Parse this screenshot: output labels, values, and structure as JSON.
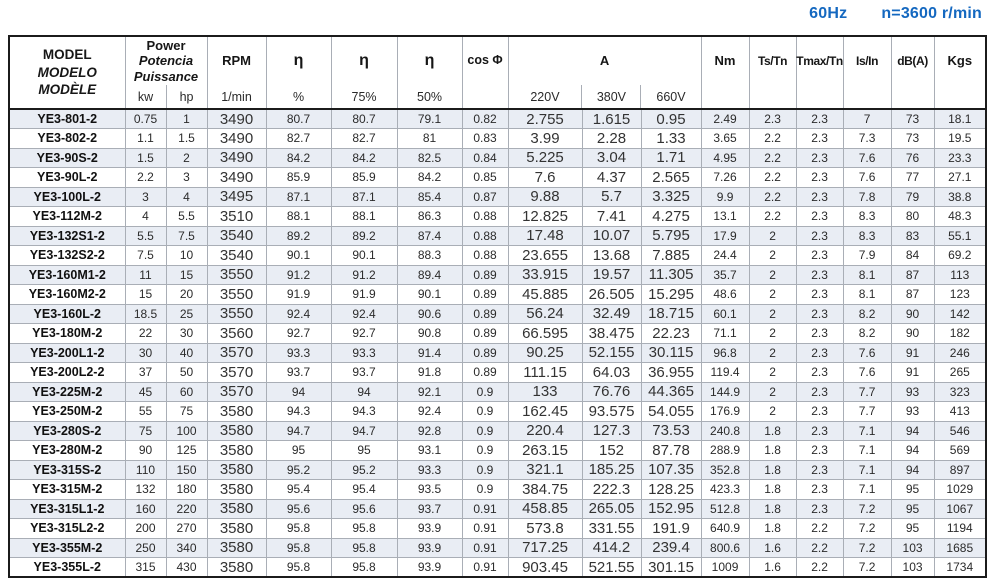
{
  "note": {
    "frequency": "60Hz",
    "speed": "n=3600 r/min"
  },
  "colors": {
    "accent_blue": "#1468c0",
    "row_stripe": "#e9edf4",
    "grid_line": "#a9aeb6",
    "frame": "#1b1b1b"
  },
  "table": {
    "columns": {
      "model": {
        "line1": "MODEL",
        "line2": "MODELO",
        "line3": "MODÈLE"
      },
      "power": {
        "line1": "Power",
        "line2": "Potencia",
        "line3": "Puissance",
        "sub_kw": "kw",
        "sub_hp": "hp"
      },
      "rpm": {
        "label": "RPM",
        "sub": "1/min"
      },
      "eta_full": {
        "label": "η",
        "sub": "%"
      },
      "eta_75": {
        "label": "η",
        "sub": "75%"
      },
      "eta_50": {
        "label": "η",
        "sub": "50%"
      },
      "cos_phi": {
        "label": "cos Φ"
      },
      "current": {
        "label": "A",
        "sub_220": "220V",
        "sub_380": "380V",
        "sub_660": "660V"
      },
      "nm": {
        "label": "Nm"
      },
      "ts_tn": {
        "label": "Ts/Tn"
      },
      "tmax_tn": {
        "label": "Tmax/Tn"
      },
      "is_in": {
        "label": "Is/In"
      },
      "dba": {
        "label": "dB(A)"
      },
      "kgs": {
        "label": "Kgs"
      }
    },
    "rows": [
      [
        "YE3-801-2",
        "0.75",
        "1",
        "3490",
        "80.7",
        "80.7",
        "79.1",
        "0.82",
        "2.755",
        "1.615",
        "0.95",
        "2.49",
        "2.3",
        "2.3",
        "7",
        "73",
        "18.1"
      ],
      [
        "YE3-802-2",
        "1.1",
        "1.5",
        "3490",
        "82.7",
        "82.7",
        "81",
        "0.83",
        "3.99",
        "2.28",
        "1.33",
        "3.65",
        "2.2",
        "2.3",
        "7.3",
        "73",
        "19.5"
      ],
      [
        "YE3-90S-2",
        "1.5",
        "2",
        "3490",
        "84.2",
        "84.2",
        "82.5",
        "0.84",
        "5.225",
        "3.04",
        "1.71",
        "4.95",
        "2.2",
        "2.3",
        "7.6",
        "76",
        "23.3"
      ],
      [
        "YE3-90L-2",
        "2.2",
        "3",
        "3490",
        "85.9",
        "85.9",
        "84.2",
        "0.85",
        "7.6",
        "4.37",
        "2.565",
        "7.26",
        "2.2",
        "2.3",
        "7.6",
        "77",
        "27.1"
      ],
      [
        "YE3-100L-2",
        "3",
        "4",
        "3495",
        "87.1",
        "87.1",
        "85.4",
        "0.87",
        "9.88",
        "5.7",
        "3.325",
        "9.9",
        "2.2",
        "2.3",
        "7.8",
        "79",
        "38.8"
      ],
      [
        "YE3-112M-2",
        "4",
        "5.5",
        "3510",
        "88.1",
        "88.1",
        "86.3",
        "0.88",
        "12.825",
        "7.41",
        "4.275",
        "13.1",
        "2.2",
        "2.3",
        "8.3",
        "80",
        "48.3"
      ],
      [
        "YE3-132S1-2",
        "5.5",
        "7.5",
        "3540",
        "89.2",
        "89.2",
        "87.4",
        "0.88",
        "17.48",
        "10.07",
        "5.795",
        "17.9",
        "2",
        "2.3",
        "8.3",
        "83",
        "55.1"
      ],
      [
        "YE3-132S2-2",
        "7.5",
        "10",
        "3540",
        "90.1",
        "90.1",
        "88.3",
        "0.88",
        "23.655",
        "13.68",
        "7.885",
        "24.4",
        "2",
        "2.3",
        "7.9",
        "84",
        "69.2"
      ],
      [
        "YE3-160M1-2",
        "11",
        "15",
        "3550",
        "91.2",
        "91.2",
        "89.4",
        "0.89",
        "33.915",
        "19.57",
        "11.305",
        "35.7",
        "2",
        "2.3",
        "8.1",
        "87",
        "113"
      ],
      [
        "YE3-160M2-2",
        "15",
        "20",
        "3550",
        "91.9",
        "91.9",
        "90.1",
        "0.89",
        "45.885",
        "26.505",
        "15.295",
        "48.6",
        "2",
        "2.3",
        "8.1",
        "87",
        "123"
      ],
      [
        "YE3-160L-2",
        "18.5",
        "25",
        "3550",
        "92.4",
        "92.4",
        "90.6",
        "0.89",
        "56.24",
        "32.49",
        "18.715",
        "60.1",
        "2",
        "2.3",
        "8.2",
        "90",
        "142"
      ],
      [
        "YE3-180M-2",
        "22",
        "30",
        "3560",
        "92.7",
        "92.7",
        "90.8",
        "0.89",
        "66.595",
        "38.475",
        "22.23",
        "71.1",
        "2",
        "2.3",
        "8.2",
        "90",
        "182"
      ],
      [
        "YE3-200L1-2",
        "30",
        "40",
        "3570",
        "93.3",
        "93.3",
        "91.4",
        "0.89",
        "90.25",
        "52.155",
        "30.115",
        "96.8",
        "2",
        "2.3",
        "7.6",
        "91",
        "246"
      ],
      [
        "YE3-200L2-2",
        "37",
        "50",
        "3570",
        "93.7",
        "93.7",
        "91.8",
        "0.89",
        "111.15",
        "64.03",
        "36.955",
        "119.4",
        "2",
        "2.3",
        "7.6",
        "91",
        "265"
      ],
      [
        "YE3-225M-2",
        "45",
        "60",
        "3570",
        "94",
        "94",
        "92.1",
        "0.9",
        "133",
        "76.76",
        "44.365",
        "144.9",
        "2",
        "2.3",
        "7.7",
        "93",
        "323"
      ],
      [
        "YE3-250M-2",
        "55",
        "75",
        "3580",
        "94.3",
        "94.3",
        "92.4",
        "0.9",
        "162.45",
        "93.575",
        "54.055",
        "176.9",
        "2",
        "2.3",
        "7.7",
        "93",
        "413"
      ],
      [
        "YE3-280S-2",
        "75",
        "100",
        "3580",
        "94.7",
        "94.7",
        "92.8",
        "0.9",
        "220.4",
        "127.3",
        "73.53",
        "240.8",
        "1.8",
        "2.3",
        "7.1",
        "94",
        "546"
      ],
      [
        "YE3-280M-2",
        "90",
        "125",
        "3580",
        "95",
        "95",
        "93.1",
        "0.9",
        "263.15",
        "152",
        "87.78",
        "288.9",
        "1.8",
        "2.3",
        "7.1",
        "94",
        "569"
      ],
      [
        "YE3-315S-2",
        "110",
        "150",
        "3580",
        "95.2",
        "95.2",
        "93.3",
        "0.9",
        "321.1",
        "185.25",
        "107.35",
        "352.8",
        "1.8",
        "2.3",
        "7.1",
        "94",
        "897"
      ],
      [
        "YE3-315M-2",
        "132",
        "180",
        "3580",
        "95.4",
        "95.4",
        "93.5",
        "0.9",
        "384.75",
        "222.3",
        "128.25",
        "423.3",
        "1.8",
        "2.3",
        "7.1",
        "95",
        "1029"
      ],
      [
        "YE3-315L1-2",
        "160",
        "220",
        "3580",
        "95.6",
        "95.6",
        "93.7",
        "0.91",
        "458.85",
        "265.05",
        "152.95",
        "512.8",
        "1.8",
        "2.3",
        "7.2",
        "95",
        "1067"
      ],
      [
        "YE3-315L2-2",
        "200",
        "270",
        "3580",
        "95.8",
        "95.8",
        "93.9",
        "0.91",
        "573.8",
        "331.55",
        "191.9",
        "640.9",
        "1.8",
        "2.2",
        "7.2",
        "95",
        "1194"
      ],
      [
        "YE3-355M-2",
        "250",
        "340",
        "3580",
        "95.8",
        "95.8",
        "93.9",
        "0.91",
        "717.25",
        "414.2",
        "239.4",
        "800.6",
        "1.6",
        "2.2",
        "7.2",
        "103",
        "1685"
      ],
      [
        "YE3-355L-2",
        "315",
        "430",
        "3580",
        "95.8",
        "95.8",
        "93.9",
        "0.91",
        "903.45",
        "521.55",
        "301.15",
        "1009",
        "1.6",
        "2.2",
        "7.2",
        "103",
        "1734"
      ]
    ]
  }
}
